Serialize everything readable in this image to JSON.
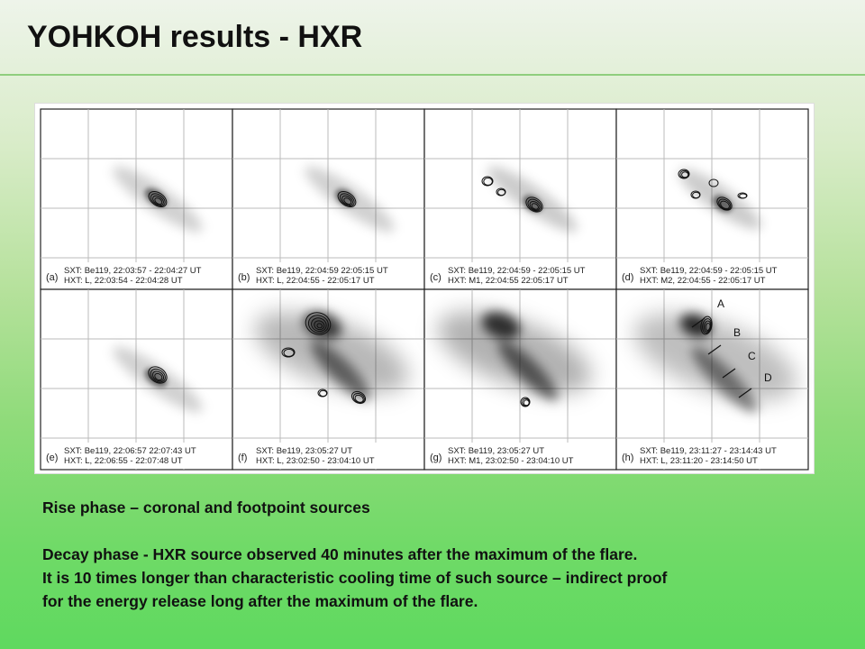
{
  "slide": {
    "title": "YOHKOH results - HXR"
  },
  "figure": {
    "panels": [
      {
        "letter": "(a)",
        "sxt": "SXT:  Be119,  22:03:57 - 22:04:27 UT",
        "hxt": "HXT:  L,  22:03:54 - 22:04:28 UT"
      },
      {
        "letter": "(b)",
        "sxt": "SXT:  Be119,  22:04:59   22:05:15 UT",
        "hxt": "HXT:  L,  22:04:55 - 22:05:17 UT"
      },
      {
        "letter": "(c)",
        "sxt": "SXT:  Be119,  22:04:59 - 22:05:15 UT",
        "hxt": "HXT:  M1,  22:04:55   22:05:17 UT"
      },
      {
        "letter": "(d)",
        "sxt": "SXT:  Be119,  22:04:59 - 22:05:15 UT",
        "hxt": "HXT:  M2,  22:04:55 - 22:05:17 UT"
      },
      {
        "letter": "(e)",
        "sxt": "SXT:  Be119,  22:06:57   22:07:43 UT",
        "hxt": "HXT:  L,  22:06:55 - 22:07:48 UT"
      },
      {
        "letter": "(f)",
        "sxt": "SXT:  Be119,  23:05:27 UT",
        "hxt": "HXT:  L,  23:02:50 - 23:04:10 UT"
      },
      {
        "letter": "(g)",
        "sxt": "SXT:  Be119,  23:05:27 UT",
        "hxt": "HXT:  M1,  23:02:50 - 23:04:10 UT"
      },
      {
        "letter": "(h)",
        "sxt": "SXT:  Be119,  23:11:27 - 23:14:43 UT",
        "hxt": "HXT:  L,  23:11:20 - 23:14:50 UT"
      }
    ],
    "annotations": [
      "A",
      "B",
      "C",
      "D"
    ]
  },
  "body": {
    "line1": "Rise phase – coronal and footpoint sources",
    "line2": "Decay phase  - HXR source observed 40 minutes after the maximum of the flare.",
    "line3": "It is 10 times  longer than characteristic cooling time of such source – indirect proof",
    "line4": "for the energy release long after the maximum of the flare."
  }
}
